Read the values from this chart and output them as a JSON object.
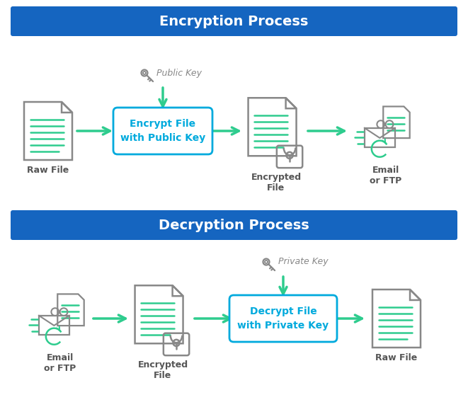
{
  "bg_color": "#FFFFFF",
  "header_color": "#1565C0",
  "header_text_color": "#FFFFFF",
  "arrow_color": "#2ECC8E",
  "box_border_color": "#00AADD",
  "box_text_color": "#00AADD",
  "icon_line_color": "#2ECC8E",
  "icon_outline_color": "#888888",
  "label_color": "#555555",
  "key_color": "#888888",
  "enc_title": "Encryption Process",
  "dec_title": "Decryption Process",
  "enc_box_text": "Encrypt File\nwith Public Key",
  "dec_box_text": "Decrypt File\nwith Private Key",
  "enc_public_key_label": "Public Key",
  "dec_private_key_label": "Private Key",
  "enc_labels": [
    "Raw File",
    "Encrypted\nFile",
    "Email\nor FTP"
  ],
  "dec_labels": [
    "Email\nor FTP",
    "Encrypted\nFile",
    "Raw File"
  ],
  "fig_w": 6.61,
  "fig_h": 5.75,
  "dpi": 100
}
